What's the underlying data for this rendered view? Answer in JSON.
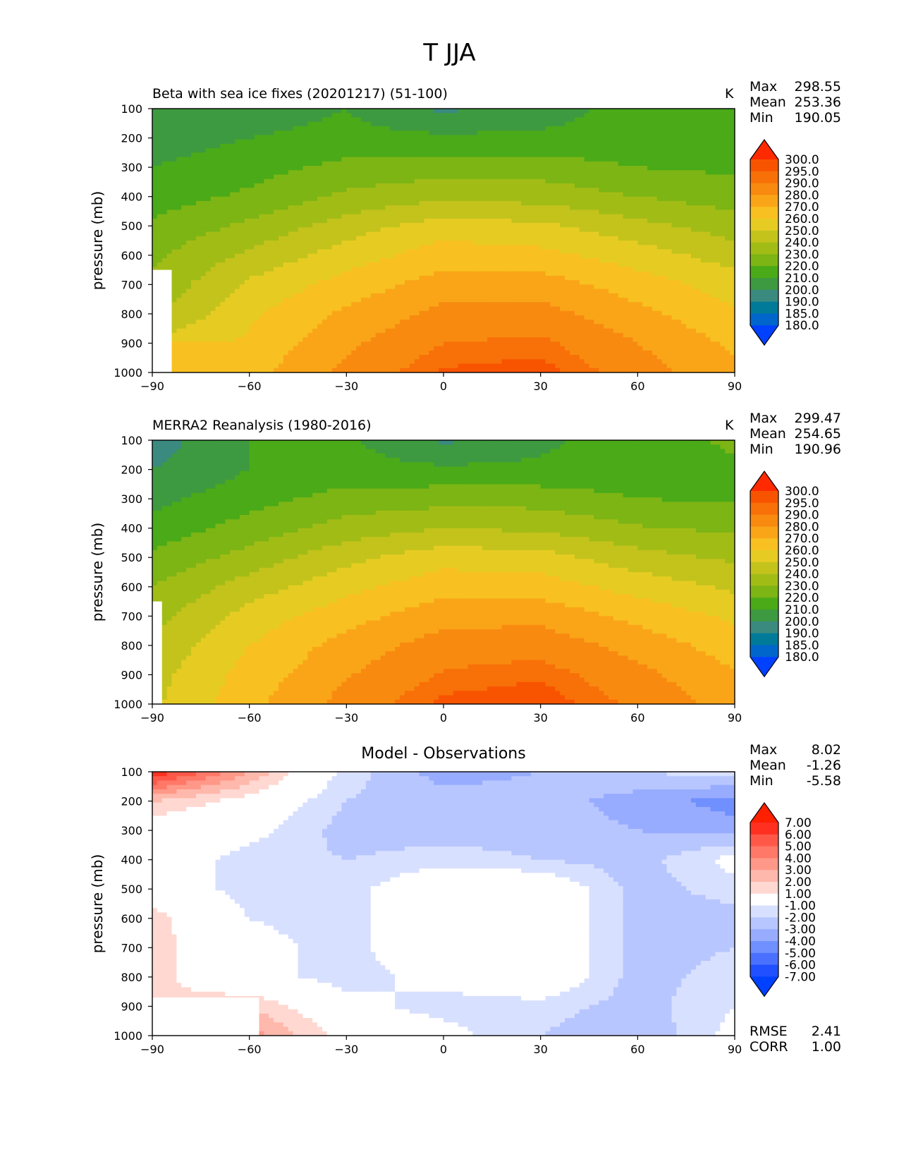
{
  "suptitle": "T JJA",
  "colors": {
    "abs": [
      "#0040ff",
      "#0066cc",
      "#007a99",
      "#3a8a80",
      "#3e9a40",
      "#4aaa18",
      "#7cb514",
      "#a2bc16",
      "#c3c31c",
      "#e6cc22",
      "#f8c020",
      "#faa518",
      "#f88a10",
      "#f87008",
      "#f85400",
      "#ff2a00"
    ],
    "diff": [
      "#0040ff",
      "#2050ff",
      "#4a70ff",
      "#7090ff",
      "#98acff",
      "#b8c6ff",
      "#d8e0ff",
      "#ffffff",
      "#ffd8d2",
      "#ffb8ac",
      "#ff9888",
      "#ff7868",
      "#ff5848",
      "#ff3020",
      "#ff2000"
    ]
  },
  "panels": [
    {
      "title": "Beta with sea ice fixes (20201217) (51-100)",
      "units": "K",
      "stats": {
        "max_label": "Max",
        "max": "298.55",
        "mean_label": "Mean",
        "mean": "253.36",
        "min_label": "Min",
        "min": "190.05"
      },
      "colorbar": [
        "300.0",
        "295.0",
        "290.0",
        "280.0",
        "270.0",
        "260.0",
        "250.0",
        "240.0",
        "230.0",
        "220.0",
        "210.0",
        "200.0",
        "190.0",
        "185.0",
        "180.0"
      ]
    },
    {
      "title": "MERRA2 Reanalysis (1980-2016)",
      "units": "K",
      "stats": {
        "max_label": "Max",
        "max": "299.47",
        "mean_label": "Mean",
        "mean": "254.65",
        "min_label": "Min",
        "min": "190.96"
      },
      "colorbar": [
        "300.0",
        "295.0",
        "290.0",
        "280.0",
        "270.0",
        "260.0",
        "250.0",
        "240.0",
        "230.0",
        "220.0",
        "210.0",
        "200.0",
        "190.0",
        "185.0",
        "180.0"
      ]
    },
    {
      "title": "Model - Observations",
      "units": "",
      "stats": {
        "max_label": "Max",
        "max": "8.02",
        "mean_label": "Mean",
        "mean": "-1.26",
        "min_label": "Min",
        "min": "-5.58"
      },
      "colorbar": [
        "7.00",
        "6.00",
        "5.00",
        "4.00",
        "3.00",
        "2.00",
        "1.00",
        "-1.00",
        "-2.00",
        "-3.00",
        "-4.00",
        "-5.00",
        "-6.00",
        "-7.00"
      ],
      "rmse_label": "RMSE",
      "rmse": "2.41",
      "corr_label": "CORR",
      "corr": "1.00"
    }
  ],
  "chart_data": [
    {
      "type": "heatmap",
      "title": "Beta with sea ice fixes (20201217) (51-100)",
      "xlabel": "",
      "ylabel": "pressure (mb)",
      "xlim": [
        -90,
        90
      ],
      "ylim": [
        1000,
        100
      ],
      "xticks": [
        -90,
        -60,
        -30,
        0,
        30,
        60,
        90
      ],
      "yticks": [
        100,
        200,
        300,
        400,
        500,
        600,
        700,
        800,
        900,
        1000
      ],
      "x": [
        -90,
        -60,
        -30,
        0,
        30,
        60,
        90
      ],
      "y": [
        100,
        200,
        300,
        400,
        500,
        600,
        700,
        800,
        900,
        1000
      ],
      "z": [
        [
          200,
          205,
          210,
          198,
          205,
          215,
          215
        ],
        [
          205,
          210,
          213,
          212,
          212,
          213,
          215
        ],
        [
          210,
          216,
          223,
          225,
          225,
          220,
          218
        ],
        [
          215,
          222,
          232,
          238,
          236,
          230,
          225
        ],
        [
          222,
          232,
          245,
          255,
          252,
          243,
          235
        ],
        [
          228,
          242,
          255,
          265,
          263,
          255,
          245
        ],
        [
          232,
          252,
          264,
          275,
          275,
          265,
          255
        ],
        [
          238,
          258,
          272,
          283,
          284,
          273,
          262
        ],
        [
          null,
          262,
          278,
          290,
          292,
          280,
          268
        ],
        [
          null,
          266,
          283,
          296,
          298,
          285,
          272
        ]
      ],
      "mask_below": [
        [
          -90,
          650
        ],
        [
          -84,
          870
        ],
        [
          -57,
          1000
        ]
      ]
    },
    {
      "type": "heatmap",
      "title": "MERRA2 Reanalysis (1980-2016)",
      "xlabel": "",
      "ylabel": "pressure (mb)",
      "xlim": [
        -90,
        90
      ],
      "ylim": [
        1000,
        100
      ],
      "xticks": [
        -90,
        -60,
        -30,
        0,
        30,
        60,
        90
      ],
      "yticks": [
        100,
        200,
        300,
        400,
        500,
        600,
        700,
        800,
        900,
        1000
      ],
      "x": [
        -90,
        -60,
        -30,
        0,
        30,
        60,
        90
      ],
      "y": [
        100,
        200,
        300,
        400,
        500,
        600,
        700,
        800,
        900,
        1000
      ],
      "z": [
        [
          195,
          210,
          212,
          198,
          208,
          215,
          222
        ],
        [
          200,
          210,
          214,
          212,
          212,
          213,
          218
        ],
        [
          207,
          216,
          224,
          226,
          226,
          220,
          219
        ],
        [
          214,
          224,
          234,
          240,
          238,
          231,
          228
        ],
        [
          222,
          234,
          247,
          256,
          254,
          244,
          238
        ],
        [
          230,
          245,
          257,
          266,
          265,
          256,
          248
        ],
        [
          236,
          254,
          266,
          276,
          277,
          267,
          258
        ],
        [
          242,
          260,
          274,
          285,
          286,
          276,
          265
        ],
        [
          246,
          264,
          279,
          291,
          294,
          283,
          271
        ],
        [
          248,
          267,
          284,
          297,
          299,
          288,
          275
        ]
      ],
      "mask_below": [
        [
          -90,
          650
        ],
        [
          -87,
          1000
        ]
      ]
    },
    {
      "type": "heatmap",
      "title": "Model - Observations",
      "xlabel": "",
      "ylabel": "pressure (mb)",
      "xlim": [
        -90,
        90
      ],
      "ylim": [
        1000,
        100
      ],
      "xticks": [
        -90,
        -60,
        -30,
        0,
        30,
        60,
        90
      ],
      "yticks": [
        100,
        200,
        300,
        400,
        500,
        600,
        700,
        800,
        900,
        1000
      ],
      "x": [
        -90,
        -60,
        -30,
        0,
        30,
        60,
        90
      ],
      "y": [
        100,
        200,
        300,
        400,
        500,
        600,
        700,
        800,
        900,
        1000
      ],
      "z": [
        [
          7.0,
          3.0,
          -1.5,
          -3.5,
          -3.0,
          -2.0,
          -1.5
        ],
        [
          2.0,
          0.5,
          -2.0,
          -2.5,
          -2.5,
          -3.5,
          -4.5
        ],
        [
          0.0,
          -0.5,
          -2.5,
          -2.5,
          -2.5,
          -3.0,
          -3.5
        ],
        [
          0.0,
          -1.5,
          -2.0,
          -1.5,
          -2.0,
          -2.5,
          -0.5
        ],
        [
          0.0,
          -1.5,
          -1.5,
          0.5,
          0.5,
          -2.5,
          -1.5
        ],
        [
          1.5,
          -1.0,
          -1.5,
          0.5,
          0.5,
          -2.5,
          -2.5
        ],
        [
          1.5,
          -0.5,
          -1.5,
          0.5,
          0.5,
          -2.5,
          -2.0
        ],
        [
          1.5,
          -0.5,
          -1.5,
          -0.5,
          0.5,
          -2.5,
          -1.5
        ],
        [
          null,
          2.0,
          -0.5,
          -1.5,
          -1.5,
          -2.5,
          -1.0
        ],
        [
          null,
          3.5,
          0.5,
          -0.5,
          -2.0,
          -3.0,
          -0.5
        ]
      ],
      "mask_below": [
        [
          -90,
          870
        ],
        [
          -57,
          1000
        ]
      ],
      "rmse": 2.41,
      "corr": 1.0
    }
  ]
}
